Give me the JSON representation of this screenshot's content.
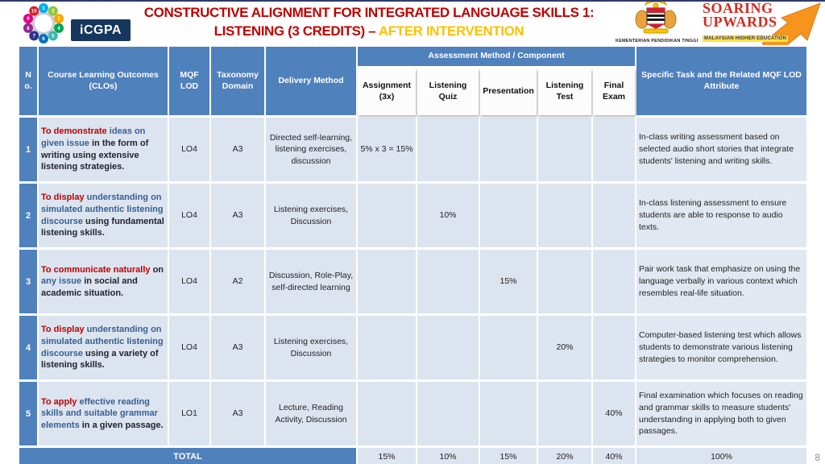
{
  "slide": {
    "title_line1": "CONSTRUCTIVE ALIGNMENT FOR INTEGRATED LANGUAGE SKILLS 1:",
    "title_line2_main": "LISTENING (3 CREDITS) – ",
    "title_line2_highlight": "AFTER INTERVENTION",
    "page_number": "8"
  },
  "logos": {
    "icgpa_label": "iCGPA",
    "ministry_label": "KEMENTERIAN PENDIDIKAN TINGGI",
    "soaring_line1": "SOARING",
    "soaring_line2": "UPWARDS",
    "soaring_line3": "MALAYSIAN HIGHER EDUCATION",
    "wheel_numbers": [
      "1",
      "2",
      "3",
      "4",
      "5",
      "6",
      "7",
      "8",
      "9",
      "10"
    ]
  },
  "colors": {
    "header_blue": "#4f81bd",
    "row_band": "#dce4f0",
    "title_red": "#c00000",
    "highlight_gold": "#ffc000",
    "clo_red": "#c00000",
    "clo_blue": "#376092"
  },
  "table": {
    "headers": {
      "no": "No.",
      "clo": "Course Learning Outcomes (CLOs)",
      "mqf": "MQF LOD",
      "taxonomy": "Taxonomy Domain",
      "delivery": "Delivery Method",
      "assessment_group": "Assessment Method / Component",
      "assignment": "Assignment (3x)",
      "quiz": "Listening Quiz",
      "presentation": "Presentation",
      "test": "Listening Test",
      "final": "Final Exam",
      "task": "Specific Task and the Related MQF LOD Attribute"
    },
    "rows": [
      {
        "no": "1",
        "clo_parts": [
          {
            "text": "To demonstrate ",
            "style": "red"
          },
          {
            "text": "ideas on given issue ",
            "style": "blue"
          },
          {
            "text": "in the form of writing using extensive listening strategies.",
            "style": "dark"
          }
        ],
        "mqf": "LO4",
        "taxonomy": "A3",
        "delivery": "Directed self-learning, listening exercises, discussion",
        "assignment": "5% x 3 = 15%",
        "quiz": "",
        "presentation": "",
        "test": "",
        "final": "",
        "task": "In-class writing assessment based on selected audio short stories that integrate students' listening and writing skills."
      },
      {
        "no": "2",
        "clo_parts": [
          {
            "text": "To display ",
            "style": "red"
          },
          {
            "text": "understanding  on simulated authentic listening discourse ",
            "style": "blue"
          },
          {
            "text": "using fundamental listening skills.",
            "style": "dark"
          }
        ],
        "mqf": "LO4",
        "taxonomy": "A3",
        "delivery": "Listening exercises, Discussion",
        "assignment": "",
        "quiz": "10%",
        "presentation": "",
        "test": "",
        "final": "",
        "task": "In-class listening assessment to ensure students are able to response to audio texts."
      },
      {
        "no": "3",
        "clo_parts": [
          {
            "text": "To communicate naturally ",
            "style": "red"
          },
          {
            "text": "on ",
            "style": "dark"
          },
          {
            "text": "any issue ",
            "style": "blue"
          },
          {
            "text": "in social and academic situation.",
            "style": "dark"
          }
        ],
        "mqf": "LO4",
        "taxonomy": "A2",
        "delivery": "Discussion, Role-Play, self-directed learning",
        "assignment": "",
        "quiz": "",
        "presentation": "15%",
        "test": "",
        "final": "",
        "task": "Pair work task that emphasize on using the language verbally in various context which resembles real-life situation."
      },
      {
        "no": "4",
        "clo_parts": [
          {
            "text": "To display ",
            "style": "red"
          },
          {
            "text": "understanding on simulated authentic listening discourse ",
            "style": "blue"
          },
          {
            "text": "using a variety of listening skills.",
            "style": "dark"
          }
        ],
        "mqf": "LO4",
        "taxonomy": "A3",
        "delivery": "Listening exercises, Discussion",
        "assignment": "",
        "quiz": "",
        "presentation": "",
        "test": "20%",
        "final": "",
        "task": "Computer-based listening test which allows students to demonstrate various listening strategies to monitor comprehension."
      },
      {
        "no": "5",
        "clo_parts": [
          {
            "text": "To apply ",
            "style": "red"
          },
          {
            "text": "effective reading skills and suitable grammar elements ",
            "style": "blue"
          },
          {
            "text": "in a given passage.",
            "style": "dark"
          }
        ],
        "mqf": "LO1",
        "taxonomy": "A3",
        "delivery": "Lecture, Reading Activity, Discussion",
        "assignment": "",
        "quiz": "",
        "presentation": "",
        "test": "",
        "final": "40%",
        "task": "Final examination which focuses on reading and grammar skills to measure students' understanding in applying both to given passages."
      }
    ],
    "total": {
      "label": "TOTAL",
      "assignment": "15%",
      "quiz": "10%",
      "presentation": "15%",
      "test": "20%",
      "final": "40%",
      "task": "100%"
    }
  }
}
